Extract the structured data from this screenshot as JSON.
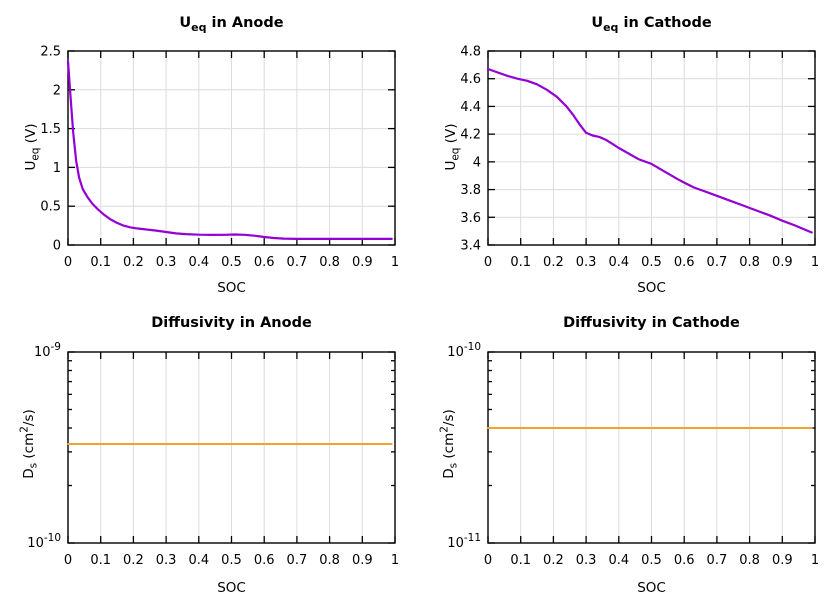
{
  "page": {
    "background": "#ffffff"
  },
  "charts_meta": {
    "grid_color": "#dcdcdc",
    "axis_color": "#000000",
    "text_color": "#000000",
    "curve_purple": "#9400D3",
    "curve_orange": "#ECA42E"
  },
  "chart_data": [
    {
      "id": "ueq-anode",
      "type": "line",
      "title": {
        "pre": "U",
        "sub": "eq",
        "post": " in Anode"
      },
      "xlabel": "SOC",
      "ylabel": {
        "pre": "U",
        "sub": "eq",
        "mid": " (V)",
        "sup": "",
        "post": ""
      },
      "xlim": [
        0,
        1
      ],
      "xticks": [
        {
          "v": 0,
          "l": "0"
        },
        {
          "v": 0.1,
          "l": "0.1"
        },
        {
          "v": 0.2,
          "l": "0.2"
        },
        {
          "v": 0.3,
          "l": "0.3"
        },
        {
          "v": 0.4,
          "l": "0.4"
        },
        {
          "v": 0.5,
          "l": "0.5"
        },
        {
          "v": 0.6,
          "l": "0.6"
        },
        {
          "v": 0.7,
          "l": "0.7"
        },
        {
          "v": 0.8,
          "l": "0.8"
        },
        {
          "v": 0.9,
          "l": "0.9"
        },
        {
          "v": 1,
          "l": "1"
        }
      ],
      "yscale": "linear",
      "ylim": [
        0,
        2.5
      ],
      "yticks": [
        {
          "v": 0,
          "l": "0"
        },
        {
          "v": 0.5,
          "l": "0.5"
        },
        {
          "v": 1,
          "l": "1"
        },
        {
          "v": 1.5,
          "l": "1.5"
        },
        {
          "v": 2,
          "l": "2"
        },
        {
          "v": 2.5,
          "l": "2.5"
        }
      ],
      "grid_horizontal": true,
      "series": [
        {
          "name": "U_eq anode",
          "color": "#9400D3",
          "width": 2.2,
          "points": [
            [
              0,
              2.37
            ],
            [
              0.008,
              1.9
            ],
            [
              0.016,
              1.45
            ],
            [
              0.025,
              1.08
            ],
            [
              0.034,
              0.87
            ],
            [
              0.045,
              0.72
            ],
            [
              0.06,
              0.615
            ],
            [
              0.075,
              0.53
            ],
            [
              0.09,
              0.465
            ],
            [
              0.11,
              0.39
            ],
            [
              0.13,
              0.33
            ],
            [
              0.15,
              0.285
            ],
            [
              0.17,
              0.25
            ],
            [
              0.19,
              0.228
            ],
            [
              0.21,
              0.214
            ],
            [
              0.24,
              0.2
            ],
            [
              0.27,
              0.185
            ],
            [
              0.3,
              0.168
            ],
            [
              0.33,
              0.15
            ],
            [
              0.36,
              0.14
            ],
            [
              0.4,
              0.133
            ],
            [
              0.44,
              0.13
            ],
            [
              0.48,
              0.132
            ],
            [
              0.51,
              0.135
            ],
            [
              0.54,
              0.132
            ],
            [
              0.57,
              0.12
            ],
            [
              0.6,
              0.103
            ],
            [
              0.63,
              0.09
            ],
            [
              0.66,
              0.082
            ],
            [
              0.7,
              0.079
            ],
            [
              0.75,
              0.078
            ],
            [
              0.8,
              0.078
            ],
            [
              0.85,
              0.078
            ],
            [
              0.9,
              0.078
            ],
            [
              0.95,
              0.078
            ],
            [
              0.99,
              0.078
            ]
          ]
        }
      ]
    },
    {
      "id": "ueq-cathode",
      "type": "line",
      "title": {
        "pre": "U",
        "sub": "eq",
        "post": " in Cathode"
      },
      "xlabel": "SOC",
      "ylabel": {
        "pre": "U",
        "sub": "eq",
        "mid": " (V)",
        "sup": "",
        "post": ""
      },
      "xlim": [
        0,
        1
      ],
      "xticks": [
        {
          "v": 0,
          "l": "0"
        },
        {
          "v": 0.1,
          "l": "0.1"
        },
        {
          "v": 0.2,
          "l": "0.2"
        },
        {
          "v": 0.3,
          "l": "0.3"
        },
        {
          "v": 0.4,
          "l": "0.4"
        },
        {
          "v": 0.5,
          "l": "0.5"
        },
        {
          "v": 0.6,
          "l": "0.6"
        },
        {
          "v": 0.7,
          "l": "0.7"
        },
        {
          "v": 0.8,
          "l": "0.8"
        },
        {
          "v": 0.9,
          "l": "0.9"
        },
        {
          "v": 1,
          "l": "1"
        }
      ],
      "yscale": "linear",
      "ylim": [
        3.4,
        4.8
      ],
      "yticks": [
        {
          "v": 3.4,
          "l": "3.4"
        },
        {
          "v": 3.6,
          "l": "3.6"
        },
        {
          "v": 3.8,
          "l": "3.8"
        },
        {
          "v": 4,
          "l": "4"
        },
        {
          "v": 4.2,
          "l": "4.2"
        },
        {
          "v": 4.4,
          "l": "4.4"
        },
        {
          "v": 4.6,
          "l": "4.6"
        },
        {
          "v": 4.8,
          "l": "4.8"
        }
      ],
      "grid_horizontal": true,
      "series": [
        {
          "name": "U_eq cathode",
          "color": "#9400D3",
          "width": 2.2,
          "points": [
            [
              0,
              4.67
            ],
            [
              0.03,
              4.645
            ],
            [
              0.06,
              4.62
            ],
            [
              0.09,
              4.6
            ],
            [
              0.12,
              4.585
            ],
            [
              0.15,
              4.56
            ],
            [
              0.18,
              4.52
            ],
            [
              0.21,
              4.47
            ],
            [
              0.24,
              4.4
            ],
            [
              0.26,
              4.34
            ],
            [
              0.28,
              4.27
            ],
            [
              0.3,
              4.21
            ],
            [
              0.32,
              4.19
            ],
            [
              0.34,
              4.18
            ],
            [
              0.36,
              4.16
            ],
            [
              0.38,
              4.13
            ],
            [
              0.4,
              4.1
            ],
            [
              0.43,
              4.06
            ],
            [
              0.46,
              4.02
            ],
            [
              0.5,
              3.985
            ],
            [
              0.54,
              3.93
            ],
            [
              0.58,
              3.875
            ],
            [
              0.6,
              3.85
            ],
            [
              0.63,
              3.815
            ],
            [
              0.66,
              3.79
            ],
            [
              0.7,
              3.755
            ],
            [
              0.74,
              3.72
            ],
            [
              0.78,
              3.685
            ],
            [
              0.82,
              3.65
            ],
            [
              0.86,
              3.615
            ],
            [
              0.9,
              3.575
            ],
            [
              0.94,
              3.54
            ],
            [
              0.99,
              3.49
            ]
          ]
        }
      ]
    },
    {
      "id": "ds-anode",
      "type": "line",
      "title": {
        "pre": "Diffusivity in Anode",
        "sub": "",
        "post": ""
      },
      "xlabel": "SOC",
      "ylabel": {
        "pre": "D",
        "sub": "s",
        "mid": " (cm",
        "sup": "2",
        "post": "/s)"
      },
      "xlim": [
        0,
        1
      ],
      "xticks": [
        {
          "v": 0,
          "l": "0"
        },
        {
          "v": 0.1,
          "l": "0.1"
        },
        {
          "v": 0.2,
          "l": "0.2"
        },
        {
          "v": 0.3,
          "l": "0.3"
        },
        {
          "v": 0.4,
          "l": "0.4"
        },
        {
          "v": 0.5,
          "l": "0.5"
        },
        {
          "v": 0.6,
          "l": "0.6"
        },
        {
          "v": 0.7,
          "l": "0.7"
        },
        {
          "v": 0.8,
          "l": "0.8"
        },
        {
          "v": 0.9,
          "l": "0.9"
        },
        {
          "v": 1,
          "l": "1"
        }
      ],
      "yscale": "log",
      "ylim": [
        1e-10,
        1e-09
      ],
      "yticks": [
        {
          "v": 1e-09,
          "base": "10",
          "exp": "-9"
        },
        {
          "v": 1e-10,
          "base": "10",
          "exp": "-10"
        }
      ],
      "yminor": [
        2e-10,
        3e-10,
        4e-10,
        5e-10,
        6e-10,
        7e-10,
        8e-10,
        9e-10
      ],
      "grid_horizontal": false,
      "series": [
        {
          "name": "D_s anode",
          "color": "#ECA42E",
          "width": 2,
          "points": [
            [
              0,
              3.3e-10
            ],
            [
              0.99,
              3.3e-10
            ]
          ]
        }
      ]
    },
    {
      "id": "ds-cathode",
      "type": "line",
      "title": {
        "pre": "Diffusivity in Cathode",
        "sub": "",
        "post": ""
      },
      "xlabel": "SOC",
      "ylabel": {
        "pre": "D",
        "sub": "s",
        "mid": " (cm",
        "sup": "2",
        "post": "/s)"
      },
      "xlim": [
        0,
        1
      ],
      "xticks": [
        {
          "v": 0,
          "l": "0"
        },
        {
          "v": 0.1,
          "l": "0.1"
        },
        {
          "v": 0.2,
          "l": "0.2"
        },
        {
          "v": 0.3,
          "l": "0.3"
        },
        {
          "v": 0.4,
          "l": "0.4"
        },
        {
          "v": 0.5,
          "l": "0.5"
        },
        {
          "v": 0.6,
          "l": "0.6"
        },
        {
          "v": 0.7,
          "l": "0.7"
        },
        {
          "v": 0.8,
          "l": "0.8"
        },
        {
          "v": 0.9,
          "l": "0.9"
        },
        {
          "v": 1,
          "l": "1"
        }
      ],
      "yscale": "log",
      "ylim": [
        1e-11,
        1e-10
      ],
      "yticks": [
        {
          "v": 1e-10,
          "base": "10",
          "exp": "-10"
        },
        {
          "v": 1e-11,
          "base": "10",
          "exp": "-11"
        }
      ],
      "yminor": [
        2e-11,
        3e-11,
        4e-11,
        5e-11,
        6e-11,
        7e-11,
        8e-11,
        9e-11
      ],
      "grid_horizontal": false,
      "series": [
        {
          "name": "D_s cathode",
          "color": "#ECA42E",
          "width": 2,
          "points": [
            [
              0,
              4e-11
            ],
            [
              0.99,
              4e-11
            ]
          ]
        }
      ]
    }
  ]
}
